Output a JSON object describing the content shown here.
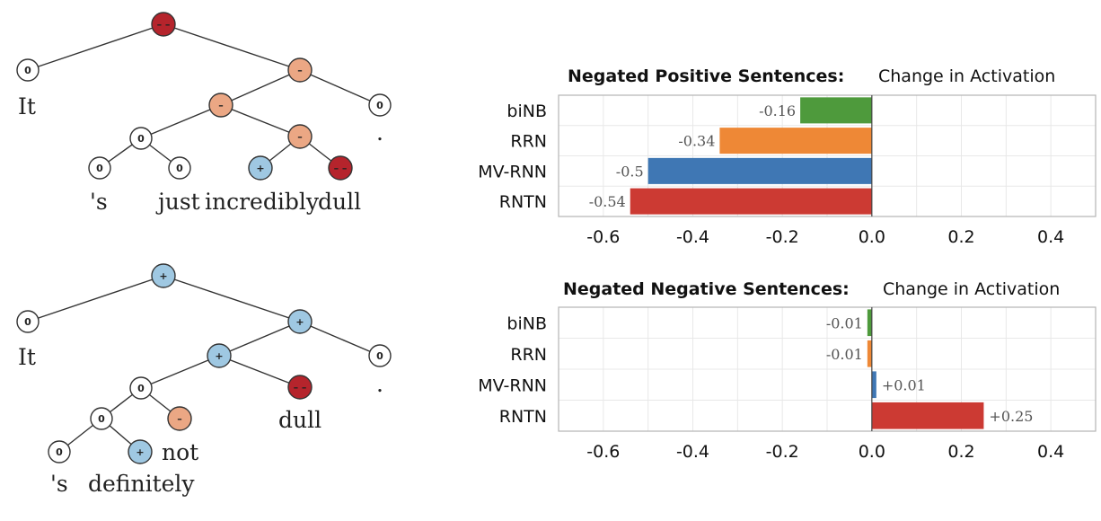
{
  "trees": [
    {
      "nodes": [
        {
          "id": "root",
          "sentiment": "very-negative",
          "label": "– –"
        },
        {
          "id": "n-it",
          "sentiment": "neutral",
          "label": "0"
        },
        {
          "id": "n-vp",
          "sentiment": "negative",
          "label": "–"
        },
        {
          "id": "n-vbar",
          "sentiment": "negative",
          "label": "–"
        },
        {
          "id": "n-period",
          "sentiment": "neutral",
          "label": "0"
        },
        {
          "id": "n-sjust",
          "sentiment": "neutral",
          "label": "0"
        },
        {
          "id": "n-adjp",
          "sentiment": "negative",
          "label": "–"
        },
        {
          "id": "n-s",
          "sentiment": "neutral",
          "label": "0"
        },
        {
          "id": "n-just",
          "sentiment": "neutral",
          "label": "0"
        },
        {
          "id": "n-incredibly",
          "sentiment": "positive",
          "label": "+"
        },
        {
          "id": "n-dull",
          "sentiment": "very-negative",
          "label": "– –"
        }
      ],
      "words": [
        "It",
        ".",
        "'s",
        "just",
        "incredibly",
        "dull"
      ]
    },
    {
      "nodes": [
        {
          "id": "root",
          "sentiment": "positive",
          "label": "+"
        },
        {
          "id": "n-it",
          "sentiment": "neutral",
          "label": "0"
        },
        {
          "id": "n-vp",
          "sentiment": "positive",
          "label": "+"
        },
        {
          "id": "n-vbar",
          "sentiment": "positive",
          "label": "+"
        },
        {
          "id": "n-period",
          "sentiment": "neutral",
          "label": "0"
        },
        {
          "id": "n-adv",
          "sentiment": "neutral",
          "label": "0"
        },
        {
          "id": "n-dull",
          "sentiment": "very-negative",
          "label": "– –"
        },
        {
          "id": "n-sdef",
          "sentiment": "neutral",
          "label": "0"
        },
        {
          "id": "n-not",
          "sentiment": "negative",
          "label": "–"
        },
        {
          "id": "n-s",
          "sentiment": "neutral",
          "label": "0"
        },
        {
          "id": "n-definitely",
          "sentiment": "positive",
          "label": "+"
        }
      ],
      "words": [
        "It",
        ".",
        "dull",
        "not",
        "'s",
        "definitely"
      ]
    }
  ],
  "sentiment_colors": {
    "very-negative": "#b5242c",
    "negative": "#eba784",
    "neutral": "#ffffff",
    "positive": "#9fc8e2"
  },
  "chart_data": [
    {
      "type": "bar",
      "orientation": "horizontal",
      "title_bold": "Negated Positive Sentences:",
      "title_rest": "Change in Activation",
      "categories": [
        "biNB",
        "RRN",
        "MV-RNN",
        "RNTN"
      ],
      "values": [
        -0.16,
        -0.34,
        -0.5,
        -0.54
      ],
      "value_labels": [
        "-0.16",
        "-0.34",
        "-0.5",
        "-0.54"
      ],
      "colors": [
        "#4e9a3c",
        "#ee8836",
        "#3f77b4",
        "#cc3a33"
      ],
      "xlim": [
        -0.7,
        0.5
      ],
      "xticks": [
        -0.6,
        -0.4,
        -0.2,
        0.0,
        0.2,
        0.4
      ],
      "xtick_labels": [
        "-0.6",
        "-0.4",
        "-0.2",
        "0.0",
        "0.2",
        "0.4"
      ],
      "grid": true
    },
    {
      "type": "bar",
      "orientation": "horizontal",
      "title_bold": "Negated Negative Sentences:",
      "title_rest": "Change in Activation",
      "categories": [
        "biNB",
        "RRN",
        "MV-RNN",
        "RNTN"
      ],
      "values": [
        -0.01,
        -0.01,
        0.01,
        0.25
      ],
      "value_labels": [
        "-0.01",
        "-0.01",
        "+0.01",
        "+0.25"
      ],
      "colors": [
        "#4e9a3c",
        "#ee8836",
        "#3f77b4",
        "#cc3a33"
      ],
      "xlim": [
        -0.7,
        0.5
      ],
      "xticks": [
        -0.6,
        -0.4,
        -0.2,
        0.0,
        0.2,
        0.4
      ],
      "xtick_labels": [
        "-0.6",
        "-0.4",
        "-0.2",
        "0.0",
        "0.2",
        "0.4"
      ],
      "grid": true
    }
  ]
}
